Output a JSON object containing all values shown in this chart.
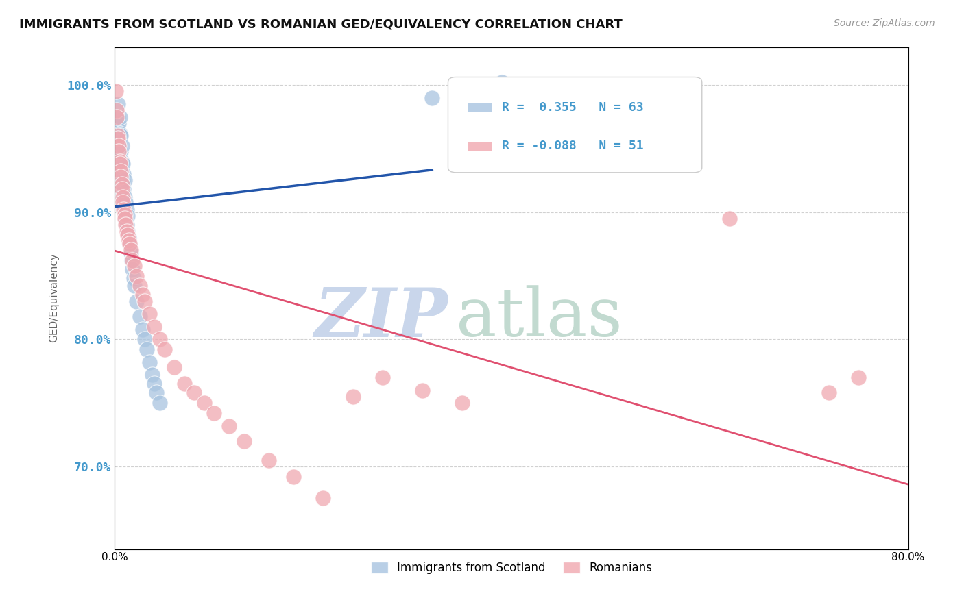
{
  "title": "IMMIGRANTS FROM SCOTLAND VS ROMANIAN GED/EQUIVALENCY CORRELATION CHART",
  "source": "Source: ZipAtlas.com",
  "ylabel": "GED/Equivalency",
  "yticks": [
    0.7,
    0.8,
    0.9,
    1.0
  ],
  "ytick_labels": [
    "70.0%",
    "80.0%",
    "90.0%",
    "100.0%"
  ],
  "xlim": [
    0.0,
    0.8
  ],
  "ylim": [
    0.635,
    1.03
  ],
  "scotland_R": 0.355,
  "scotland_N": 63,
  "romanian_R": -0.088,
  "romanian_N": 51,
  "scotland_color": "#a8c4e0",
  "scottish_line_color": "#2255aa",
  "romanian_color": "#f0a8b0",
  "romanian_line_color": "#e05070",
  "watermark_zip": "ZIP",
  "watermark_atlas": "atlas",
  "watermark_color_zip": "#c0cfe8",
  "watermark_color_atlas": "#b8d4c8",
  "legend_box_color": "#f5f5f5",
  "scotland_x": [
    0.001,
    0.001,
    0.001,
    0.002,
    0.002,
    0.002,
    0.002,
    0.003,
    0.003,
    0.003,
    0.003,
    0.003,
    0.004,
    0.004,
    0.004,
    0.004,
    0.005,
    0.005,
    0.005,
    0.005,
    0.005,
    0.006,
    0.006,
    0.006,
    0.006,
    0.007,
    0.007,
    0.007,
    0.007,
    0.008,
    0.008,
    0.008,
    0.009,
    0.009,
    0.009,
    0.01,
    0.01,
    0.01,
    0.011,
    0.011,
    0.012,
    0.012,
    0.013,
    0.013,
    0.014,
    0.015,
    0.016,
    0.017,
    0.018,
    0.019,
    0.02,
    0.022,
    0.025,
    0.028,
    0.03,
    0.032,
    0.035,
    0.038,
    0.04,
    0.042,
    0.045,
    0.32,
    0.39
  ],
  "scotland_y": [
    0.935,
    0.96,
    0.975,
    0.945,
    0.96,
    0.97,
    0.955,
    0.94,
    0.95,
    0.965,
    0.975,
    0.985,
    0.93,
    0.945,
    0.96,
    0.97,
    0.925,
    0.938,
    0.95,
    0.962,
    0.975,
    0.92,
    0.935,
    0.948,
    0.96,
    0.915,
    0.928,
    0.94,
    0.952,
    0.91,
    0.925,
    0.938,
    0.905,
    0.918,
    0.93,
    0.9,
    0.912,
    0.925,
    0.895,
    0.908,
    0.89,
    0.902,
    0.885,
    0.897,
    0.88,
    0.875,
    0.868,
    0.862,
    0.855,
    0.848,
    0.842,
    0.83,
    0.818,
    0.808,
    0.8,
    0.792,
    0.782,
    0.772,
    0.765,
    0.758,
    0.75,
    0.99,
    1.002
  ],
  "romanian_x": [
    0.001,
    0.002,
    0.002,
    0.003,
    0.003,
    0.004,
    0.004,
    0.005,
    0.005,
    0.006,
    0.006,
    0.007,
    0.007,
    0.008,
    0.008,
    0.009,
    0.01,
    0.01,
    0.011,
    0.012,
    0.013,
    0.014,
    0.015,
    0.016,
    0.018,
    0.02,
    0.022,
    0.025,
    0.028,
    0.03,
    0.035,
    0.04,
    0.045,
    0.05,
    0.06,
    0.07,
    0.08,
    0.09,
    0.1,
    0.115,
    0.13,
    0.155,
    0.18,
    0.21,
    0.24,
    0.27,
    0.31,
    0.35,
    0.62,
    0.72,
    0.75
  ],
  "romanian_y": [
    0.995,
    0.98,
    0.975,
    0.96,
    0.958,
    0.952,
    0.948,
    0.94,
    0.938,
    0.932,
    0.928,
    0.922,
    0.918,
    0.912,
    0.908,
    0.902,
    0.898,
    0.895,
    0.89,
    0.885,
    0.882,
    0.878,
    0.875,
    0.87,
    0.862,
    0.858,
    0.85,
    0.842,
    0.835,
    0.83,
    0.82,
    0.81,
    0.8,
    0.792,
    0.778,
    0.765,
    0.758,
    0.75,
    0.742,
    0.732,
    0.72,
    0.705,
    0.692,
    0.675,
    0.755,
    0.77,
    0.76,
    0.75,
    0.895,
    0.758,
    0.77
  ]
}
